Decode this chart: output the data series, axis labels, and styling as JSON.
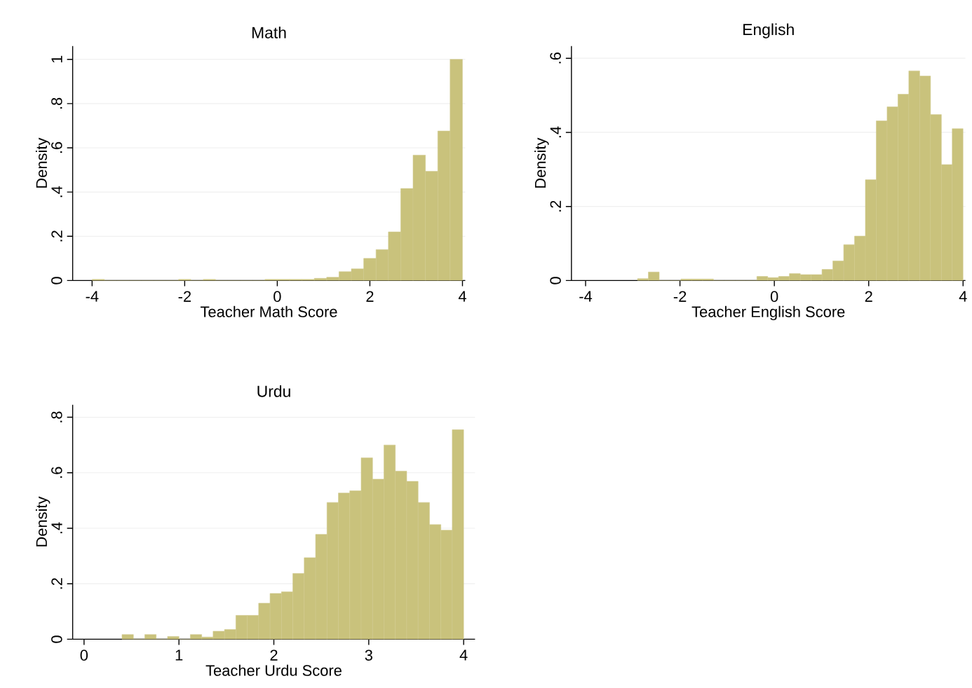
{
  "chart_data": [
    {
      "type": "histogram",
      "title": "Math",
      "xlabel": "Teacher Math Score",
      "ylabel": "Density",
      "color": "#c9c27c",
      "grid": "y",
      "bins": [
        -4,
        -3.733,
        -3.467,
        -3.2,
        -2.933,
        -2.667,
        -2.4,
        -2.133,
        -1.867,
        -1.6,
        -1.333,
        -1.067,
        -0.8,
        -0.533,
        -0.267,
        0,
        0.267,
        0.533,
        0.8,
        1.067,
        1.333,
        1.6,
        1.867,
        2.133,
        2.4,
        2.667,
        2.933,
        3.2,
        3.467,
        3.733,
        4
      ],
      "values": [
        0.005,
        0,
        0,
        0,
        0,
        0,
        0,
        0.005,
        0,
        0.005,
        0,
        0,
        0,
        0,
        0.005,
        0.005,
        0.005,
        0.005,
        0.01,
        0.015,
        0.04,
        0.053,
        0.1,
        0.14,
        0.22,
        0.416,
        0.567,
        0.494,
        0.676,
        1
      ],
      "xlim": [
        -4.42,
        4.06
      ],
      "ylim": [
        0,
        1.06
      ],
      "xticks": [
        -4,
        -2,
        0,
        2,
        4
      ],
      "yticks": [
        0,
        {
          "value": 0.2,
          "label": ".2"
        },
        {
          "value": 0.4,
          "label": ".4"
        },
        {
          "value": 0.6,
          "label": ".6"
        },
        {
          "value": 0.8,
          "label": ".8"
        },
        1
      ]
    },
    {
      "type": "histogram",
      "title": "English",
      "xlabel": "Teacher English Score",
      "ylabel": "Density",
      "color": "#c9c27c",
      "grid": "y",
      "bins": [
        -2.9,
        -2.67,
        -2.44,
        -2.21,
        -1.98,
        -1.75,
        -1.52,
        -1.29,
        -1.06,
        -0.83,
        -0.6,
        -0.37,
        -0.14,
        0.09,
        0.32,
        0.55,
        0.78,
        1.01,
        1.24,
        1.47,
        1.7,
        1.93,
        2.16,
        2.39,
        2.62,
        2.85,
        3.08,
        3.31,
        3.54,
        3.77,
        4.0
      ],
      "values": [
        0.005,
        0.023,
        0,
        0,
        0.004,
        0.004,
        0.004,
        0,
        0,
        0,
        0,
        0.011,
        0.008,
        0.011,
        0.019,
        0.016,
        0.016,
        0.03,
        0.053,
        0.097,
        0.12,
        0.272,
        0.431,
        0.469,
        0.503,
        0.566,
        0.552,
        0.448,
        0.313,
        0.41
      ],
      "xlim": [
        -4.3,
        4.05
      ],
      "ylim": [
        0,
        0.633
      ],
      "xticks": [
        -4,
        -2,
        0,
        2,
        4
      ],
      "yticks": [
        0,
        {
          "value": 0.2,
          "label": ".2"
        },
        {
          "value": 0.4,
          "label": ".4"
        },
        {
          "value": 0.6,
          "label": ".6"
        }
      ]
    },
    {
      "type": "histogram",
      "title": "Urdu",
      "xlabel": "Teacher Urdu Score",
      "ylabel": "Density",
      "color": "#c9c27c",
      "grid": "y",
      "bins": [
        0.4,
        0.52,
        0.64,
        0.76,
        0.88,
        1,
        1.12,
        1.24,
        1.36,
        1.48,
        1.6,
        1.72,
        1.84,
        1.96,
        2.08,
        2.2,
        2.32,
        2.44,
        2.56,
        2.68,
        2.8,
        2.92,
        3.04,
        3.16,
        3.28,
        3.4,
        3.52,
        3.64,
        3.76,
        3.88,
        4
      ],
      "values": [
        0.017,
        0,
        0.017,
        0,
        0.01,
        0,
        0.017,
        0.008,
        0.029,
        0.035,
        0.086,
        0.086,
        0.13,
        0.165,
        0.171,
        0.237,
        0.294,
        0.378,
        0.493,
        0.527,
        0.535,
        0.654,
        0.577,
        0.7,
        0.606,
        0.569,
        0.493,
        0.413,
        0.393,
        0.755
      ],
      "xlim": [
        -0.12,
        4.12
      ],
      "ylim": [
        0,
        0.845
      ],
      "xticks": [
        0,
        1,
        2,
        3,
        4
      ],
      "yticks": [
        0,
        {
          "value": 0.2,
          "label": ".2"
        },
        {
          "value": 0.4,
          "label": ".4"
        },
        {
          "value": 0.6,
          "label": ".6"
        },
        {
          "value": 0.8,
          "label": ".8"
        }
      ]
    }
  ]
}
